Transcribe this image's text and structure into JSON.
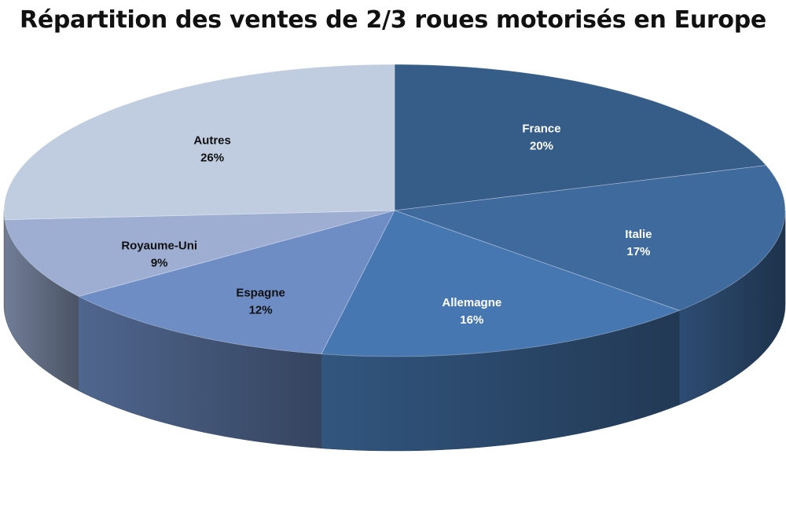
{
  "chart_data": {
    "type": "pie",
    "title": "Répartition des ventes de 2/3 roues motorisés en Europe",
    "style": "3d-pie",
    "slices": [
      {
        "label": "France",
        "value": 20,
        "display": "20%",
        "color": "#365C88",
        "label_color": "#ffffff"
      },
      {
        "label": "Italie",
        "value": 17,
        "display": "17%",
        "color": "#3F6A9E",
        "label_color": "#ffffff"
      },
      {
        "label": "Allemagne",
        "value": 16,
        "display": "16%",
        "color": "#4677B0",
        "label_color": "#ffffff"
      },
      {
        "label": "Espagne",
        "value": 12,
        "display": "12%",
        "color": "#6E8DC5",
        "label_color": "#111111"
      },
      {
        "label": "Royaume-Uni",
        "value": 9,
        "display": "9%",
        "color": "#9DAED2",
        "label_color": "#111111"
      },
      {
        "label": "Autres",
        "value": 26,
        "display": "26%",
        "color": "#C0CCDF",
        "label_color": "#111111"
      }
    ]
  }
}
